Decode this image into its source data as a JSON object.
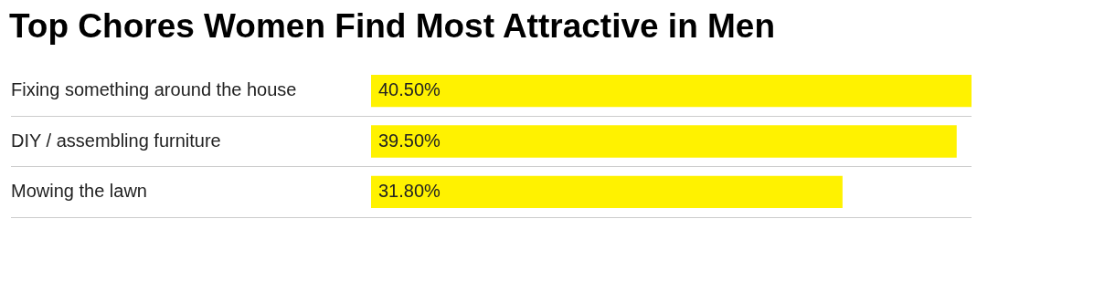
{
  "chart_data": {
    "type": "bar",
    "orientation": "horizontal",
    "title": "Top Chores Women Find Most Attractive in Men",
    "categories": [
      "Fixing something around the house",
      "DIY / assembling furniture",
      "Mowing the lawn"
    ],
    "values": [
      40.5,
      39.5,
      31.8
    ],
    "value_labels": [
      "40.50%",
      "39.50%",
      "31.80%"
    ],
    "color": "#fff200",
    "grid": "y",
    "legend": false
  }
}
